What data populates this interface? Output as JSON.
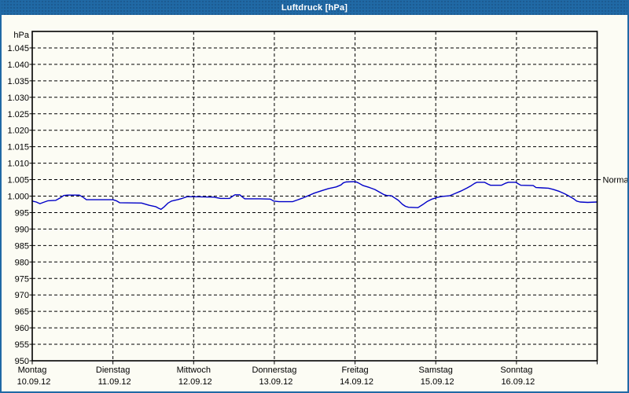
{
  "window": {
    "title": "Luftdruck [hPa]"
  },
  "colors": {
    "titlebar": "#2069a5",
    "frame": "#2069a5",
    "background": "#fcfcf4",
    "plot_border": "#000000",
    "grid": "#000000",
    "line": "#0000c8",
    "text": "#000000",
    "title_text": "#ffffff"
  },
  "chart_data": {
    "type": "line",
    "title": "Luftdruck [hPa]",
    "unit_label": "hPa",
    "grid": "dashed",
    "y_axis": {
      "min": 950,
      "max": 1050,
      "tick_step": 5,
      "tick_values": [
        950,
        955,
        960,
        965,
        970,
        975,
        980,
        985,
        990,
        995,
        1000,
        1005,
        1010,
        1015,
        1020,
        1025,
        1030,
        1035,
        1040,
        1045
      ],
      "tick_labels": [
        "950",
        "955",
        "960",
        "965",
        "970",
        "975",
        "980",
        "985",
        "990",
        "995",
        "1.000",
        "1.005",
        "1.010",
        "1.015",
        "1.020",
        "1.025",
        "1.030",
        "1.035",
        "1.040",
        "1.045"
      ]
    },
    "x_axis": {
      "hours_total": 168,
      "hours_per_day": 24,
      "days": [
        {
          "name": "Montag",
          "date": "10.09.12"
        },
        {
          "name": "Dienstag",
          "date": "11.09.12"
        },
        {
          "name": "Mittwoch",
          "date": "12.09.12"
        },
        {
          "name": "Donnerstag",
          "date": "13.09.12"
        },
        {
          "name": "Freitag",
          "date": "14.09.12"
        },
        {
          "name": "Samstag",
          "date": "15.09.12"
        },
        {
          "name": "Sonntag",
          "date": "16.09.12"
        }
      ]
    },
    "normal_marker": {
      "label": "Normal",
      "value": 1005
    },
    "series": [
      {
        "name": "Luftdruck",
        "color": "#0000c8",
        "points": [
          [
            0,
            998.5
          ],
          [
            1.2,
            998.2
          ],
          [
            2.3,
            997.7
          ],
          [
            3.3,
            998.1
          ],
          [
            4.7,
            998.6
          ],
          [
            7,
            998.7
          ],
          [
            8.4,
            999.5
          ],
          [
            9.4,
            1000.2
          ],
          [
            10.5,
            1000.3
          ],
          [
            14,
            1000.3
          ],
          [
            15.2,
            999.6
          ],
          [
            16.1,
            998.9
          ],
          [
            24,
            998.9
          ],
          [
            25,
            998.6
          ],
          [
            26,
            998.0
          ],
          [
            32.5,
            997.9
          ],
          [
            34.8,
            997.2
          ],
          [
            36.7,
            996.8
          ],
          [
            37.6,
            996.3
          ],
          [
            38.3,
            996.0
          ],
          [
            39.3,
            996.8
          ],
          [
            40.4,
            997.9
          ],
          [
            41.4,
            998.5
          ],
          [
            43.2,
            998.9
          ],
          [
            44.6,
            999.3
          ],
          [
            46,
            999.8
          ],
          [
            48,
            999.8
          ],
          [
            54,
            999.7
          ],
          [
            56,
            999.3
          ],
          [
            58.7,
            999.3
          ],
          [
            59.5,
            999.9
          ],
          [
            60.3,
            1000.4
          ],
          [
            61.7,
            1000.4
          ],
          [
            62.4,
            999.8
          ],
          [
            63.2,
            999.2
          ],
          [
            67.5,
            999.2
          ],
          [
            70.8,
            999.1
          ],
          [
            71.8,
            998.5
          ],
          [
            73.4,
            998.3
          ],
          [
            77.4,
            998.3
          ],
          [
            78.8,
            998.8
          ],
          [
            80.4,
            999.4
          ],
          [
            82,
            1000.1
          ],
          [
            83.9,
            1000.9
          ],
          [
            86.2,
            1001.7
          ],
          [
            88.1,
            1002.3
          ],
          [
            90.4,
            1002.8
          ],
          [
            91.8,
            1003.4
          ],
          [
            92.5,
            1004.0
          ],
          [
            93.3,
            1004.3
          ],
          [
            96.1,
            1004.4
          ],
          [
            97,
            1004.0
          ],
          [
            98.4,
            1003.2
          ],
          [
            100.3,
            1002.6
          ],
          [
            101.9,
            1002.0
          ],
          [
            103.3,
            1001.2
          ],
          [
            104.5,
            1000.5
          ],
          [
            105.4,
            1000.2
          ],
          [
            106.8,
            1000.1
          ],
          [
            107.7,
            999.5
          ],
          [
            108.9,
            998.7
          ],
          [
            110.1,
            997.5
          ],
          [
            111,
            996.9
          ],
          [
            111.9,
            996.6
          ],
          [
            114.7,
            996.5
          ],
          [
            116.1,
            997.4
          ],
          [
            117.5,
            998.4
          ],
          [
            118.9,
            999.1
          ],
          [
            120.4,
            999.6
          ],
          [
            121.8,
            999.9
          ],
          [
            124.1,
            1000.1
          ],
          [
            125.5,
            1000.7
          ],
          [
            127.4,
            1001.5
          ],
          [
            129.2,
            1002.4
          ],
          [
            130.6,
            1003.2
          ],
          [
            131.6,
            1003.9
          ],
          [
            132.3,
            1004.2
          ],
          [
            134.5,
            1004.2
          ],
          [
            135.6,
            1003.6
          ],
          [
            136.3,
            1003.3
          ],
          [
            139.5,
            1003.3
          ],
          [
            140.7,
            1003.9
          ],
          [
            141.6,
            1004.2
          ],
          [
            143.8,
            1004.2
          ],
          [
            144.6,
            1003.7
          ],
          [
            145.3,
            1003.3
          ],
          [
            149,
            1003.2
          ],
          [
            149.8,
            1002.6
          ],
          [
            151.6,
            1002.5
          ],
          [
            153.5,
            1002.4
          ],
          [
            155,
            1002.0
          ],
          [
            156.8,
            1001.4
          ],
          [
            158.4,
            1000.7
          ],
          [
            159.8,
            999.9
          ],
          [
            161,
            999.2
          ],
          [
            161.9,
            998.5
          ],
          [
            162.9,
            998.2
          ],
          [
            165.2,
            998.1
          ],
          [
            168,
            998.2
          ]
        ]
      }
    ]
  }
}
